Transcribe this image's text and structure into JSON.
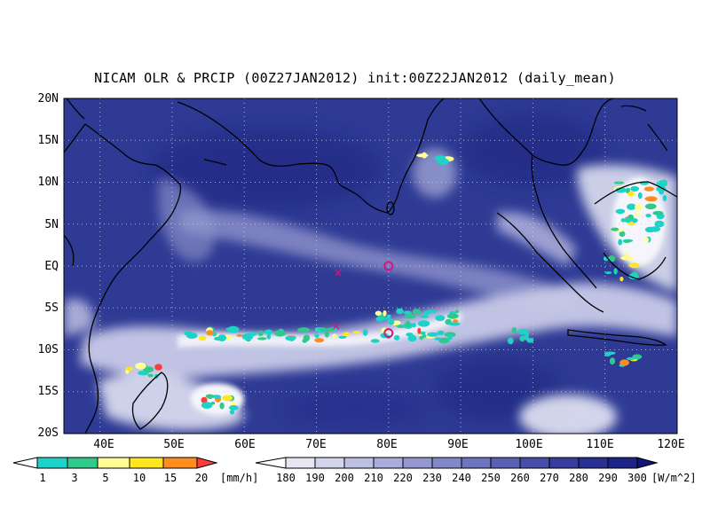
{
  "title": "NICAM OLR & PRCIP (00Z27JAN2012) init:00Z22JAN2012 (daily_mean)",
  "map": {
    "lat_labels": [
      "20N",
      "15N",
      "10N",
      "5N",
      "EQ",
      "5S",
      "10S",
      "15S",
      "20S"
    ],
    "lon_labels": [
      "40E",
      "50E",
      "60E",
      "70E",
      "80E",
      "90E",
      "100E",
      "110E",
      "120E"
    ],
    "lat_range": [
      -20,
      20
    ],
    "lon_range": [
      35,
      120
    ],
    "ocean_color": "#2e3a94",
    "grid": "dotted",
    "markers": [
      {
        "symbol": "x",
        "lon": 73,
        "lat": -0.8,
        "color": "#d8147a"
      },
      {
        "symbol": "o",
        "lon": 80,
        "lat": 0.0,
        "color": "#d8147a"
      },
      {
        "symbol": "x",
        "lon": 72.7,
        "lat": -7.2,
        "color": "#d8147a"
      },
      {
        "symbol": "o",
        "lon": 80,
        "lat": -8.0,
        "color": "#d8147a"
      }
    ]
  },
  "precip_colorbar": {
    "ticks": [
      "1",
      "3",
      "5",
      "10",
      "15",
      "20"
    ],
    "unit": "[mm/h]",
    "colors": [
      "#ffffff",
      "#1ed2c8",
      "#32c88c",
      "#ffff96",
      "#ffe61e",
      "#ff8c1e",
      "#ff3c3c"
    ]
  },
  "olr_colorbar": {
    "ticks": [
      "180",
      "190",
      "200",
      "210",
      "220",
      "230",
      "240",
      "250",
      "260",
      "270",
      "280",
      "290",
      "300"
    ],
    "unit": "[W/m^2]",
    "colors": [
      "#ffffff",
      "#e6e6f2",
      "#d2d4ea",
      "#bec0e2",
      "#aaadda",
      "#9598cf",
      "#8287c6",
      "#6e74bd",
      "#5a60b2",
      "#474da8",
      "#373d9c",
      "#283091",
      "#1c2486",
      "#0f157a"
    ]
  }
}
